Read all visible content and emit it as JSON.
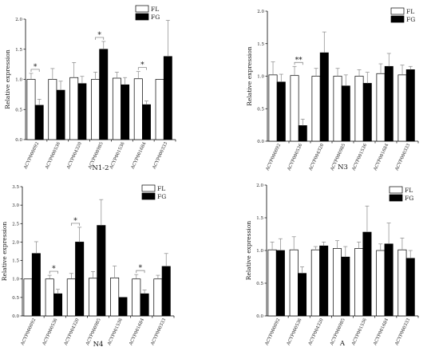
{
  "chart_data": [
    {
      "type": "bar",
      "title": "N1-2",
      "ylabel": "Relative expression",
      "ylim": [
        0,
        2.0
      ],
      "yticks": [
        0.0,
        0.5,
        1.0,
        1.5,
        2.0
      ],
      "legend_position": "top-right",
      "categories": [
        "ACYP000092",
        "ACYP000536",
        "ACYP004320",
        "ACYP000985",
        "ACYP001536",
        "ACYP001684",
        "ACYP000333"
      ],
      "series": [
        {
          "name": "FL",
          "color": "#ffffff",
          "values": [
            1.0,
            1.0,
            1.03,
            1.0,
            1.02,
            1.01,
            1.0
          ],
          "errors": [
            0.1,
            0.18,
            0.25,
            0.12,
            0.1,
            0.12,
            0.0
          ]
        },
        {
          "name": "FG",
          "color": "#000000",
          "values": [
            0.57,
            0.82,
            0.93,
            1.5,
            0.91,
            0.58,
            1.38
          ],
          "errors": [
            0.1,
            0.15,
            0.12,
            0.13,
            0.12,
            0.06,
            0.6
          ]
        }
      ],
      "significance": [
        {
          "index": 0,
          "label": "*"
        },
        {
          "index": 3,
          "label": "*"
        },
        {
          "index": 5,
          "label": "*"
        }
      ]
    },
    {
      "type": "bar",
      "title": "N3",
      "ylabel": "Relative expression",
      "ylim": [
        0,
        2.0
      ],
      "yticks": [
        0.0,
        0.5,
        1.0,
        1.5,
        2.0
      ],
      "legend_position": "top-right",
      "categories": [
        "ACYP000092",
        "ACYP000536",
        "ACYP004320",
        "ACYP000985",
        "ACYP001536",
        "ACYP001684",
        "ACYP000333"
      ],
      "series": [
        {
          "name": "FL",
          "color": "#ffffff",
          "values": [
            1.02,
            1.01,
            1.0,
            1.0,
            1.0,
            1.04,
            1.02
          ],
          "errors": [
            0.2,
            0.14,
            0.12,
            0.12,
            0.1,
            0.15,
            0.15
          ]
        },
        {
          "name": "FG",
          "color": "#000000",
          "values": [
            0.91,
            0.24,
            1.36,
            0.85,
            0.89,
            1.15,
            1.1
          ],
          "errors": [
            0.12,
            0.1,
            0.32,
            0.17,
            0.17,
            0.2,
            0.05
          ]
        }
      ],
      "significance": [
        {
          "index": 1,
          "label": "**"
        }
      ]
    },
    {
      "type": "bar",
      "title": "N4",
      "ylabel": "Relative expression",
      "ylim": [
        0,
        3.5
      ],
      "yticks": [
        0.0,
        0.5,
        1.0,
        1.5,
        2.0,
        2.5,
        3.0,
        3.5
      ],
      "legend_position": "top-right",
      "categories": [
        "ACYP000092",
        "ACYP000536",
        "ACYP004320",
        "ACYP000985",
        "ACYP001536",
        "ACYP001684",
        "ACYP000333"
      ],
      "series": [
        {
          "name": "FL",
          "color": "#ffffff",
          "values": [
            1.0,
            1.0,
            1.0,
            1.02,
            1.03,
            1.0,
            1.0
          ],
          "errors": [
            0.0,
            0.1,
            0.15,
            0.18,
            0.32,
            0.12,
            0.1
          ]
        },
        {
          "name": "FG",
          "color": "#000000",
          "values": [
            1.69,
            0.6,
            2.0,
            2.45,
            0.5,
            0.6,
            1.34
          ],
          "errors": [
            0.32,
            0.12,
            0.4,
            0.7,
            0.0,
            0.1,
            0.35
          ]
        }
      ],
      "significance": [
        {
          "index": 1,
          "label": "*"
        },
        {
          "index": 2,
          "label": "*"
        },
        {
          "index": 5,
          "label": "*"
        }
      ]
    },
    {
      "type": "bar",
      "title": "A",
      "ylabel": "Relative expression",
      "ylim": [
        0,
        2.0
      ],
      "yticks": [
        0.0,
        0.5,
        1.0,
        1.5,
        2.0
      ],
      "legend_position": "top-right",
      "categories": [
        "ACYP000092",
        "ACYP000536",
        "ACYP004320",
        "ACYP000985",
        "ACYP001536",
        "ACYP001684",
        "ACYP000333"
      ],
      "series": [
        {
          "name": "FL",
          "color": "#ffffff",
          "values": [
            1.01,
            1.01,
            1.01,
            1.03,
            1.03,
            1.0,
            1.01
          ],
          "errors": [
            0.12,
            0.2,
            0.05,
            0.12,
            0.1,
            0.1,
            0.18
          ]
        },
        {
          "name": "FG",
          "color": "#000000",
          "values": [
            1.0,
            0.65,
            1.07,
            0.9,
            1.28,
            1.1,
            0.88
          ],
          "errors": [
            0.18,
            0.1,
            0.06,
            0.16,
            0.4,
            0.32,
            0.12
          ]
        }
      ],
      "significance": []
    }
  ]
}
